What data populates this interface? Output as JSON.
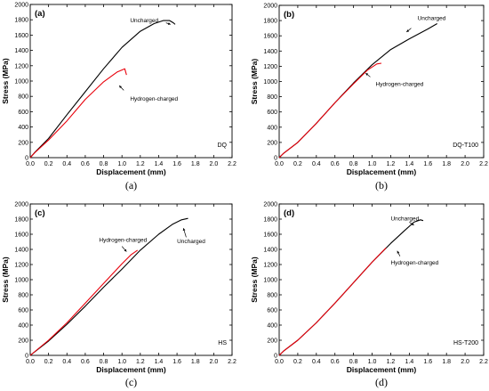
{
  "chart_data": [
    {
      "panel": "(a)",
      "caption": "(a)",
      "type": "line",
      "xlabel": "Displacement (mm)",
      "ylabel": "Stress (MPa)",
      "xlim": [
        0,
        2.2
      ],
      "ylim": [
        0,
        2000
      ],
      "xticks": [
        "0.0",
        "0.2",
        "0.4",
        "0.6",
        "0.8",
        "1.0",
        "1.2",
        "1.4",
        "1.6",
        "1.8",
        "2.0",
        "2.2"
      ],
      "yticks": [
        "0",
        "200",
        "400",
        "600",
        "800",
        "1000",
        "1200",
        "1400",
        "1600",
        "1800",
        "2000"
      ],
      "sample_label": "DQ",
      "series": [
        {
          "name": "Uncharged",
          "color": "#000000",
          "x": [
            0,
            0.05,
            0.2,
            0.4,
            0.6,
            0.8,
            1.0,
            1.2,
            1.35,
            1.45,
            1.52,
            1.56,
            1.58
          ],
          "y": [
            0,
            70,
            250,
            560,
            860,
            1160,
            1440,
            1650,
            1750,
            1790,
            1790,
            1760,
            1740
          ]
        },
        {
          "name": "Hydrogen-charged",
          "color": "#e8000b",
          "x": [
            0,
            0.05,
            0.2,
            0.4,
            0.6,
            0.8,
            0.95,
            1.03,
            1.05
          ],
          "y": [
            0,
            65,
            230,
            480,
            760,
            990,
            1120,
            1160,
            1080
          ]
        }
      ],
      "annotations": [
        {
          "text": "Uncharged",
          "x": 1.05,
          "y": 1720
        },
        {
          "text": "Hydrogen-charged",
          "x": 1.05,
          "y": 790
        }
      ]
    },
    {
      "panel": "(b)",
      "caption": "(b)",
      "type": "line",
      "xlabel": "Displacement (mm)",
      "ylabel": "Stress (MPa)",
      "xlim": [
        0,
        2.2
      ],
      "ylim": [
        0,
        2000
      ],
      "xticks": [
        "0.0",
        "0.2",
        "0.4",
        "0.6",
        "0.8",
        "1.0",
        "1.2",
        "1.4",
        "1.6",
        "1.8",
        "2.0",
        "2.2"
      ],
      "yticks": [
        "0",
        "200",
        "400",
        "600",
        "800",
        "1000",
        "1200",
        "1400",
        "1600",
        "1800",
        "2000"
      ],
      "sample_label": "DQ-T100",
      "series": [
        {
          "name": "Uncharged",
          "color": "#000000",
          "x": [
            0,
            0.05,
            0.2,
            0.4,
            0.6,
            0.8,
            1.0,
            1.2,
            1.4,
            1.6,
            1.7
          ],
          "y": [
            0,
            60,
            200,
            450,
            720,
            980,
            1220,
            1420,
            1560,
            1690,
            1760
          ]
        },
        {
          "name": "Hydrogen-charged",
          "color": "#e8000b",
          "x": [
            0,
            0.05,
            0.2,
            0.4,
            0.6,
            0.8,
            0.95,
            1.05,
            1.1
          ],
          "y": [
            0,
            60,
            200,
            450,
            720,
            970,
            1150,
            1230,
            1240
          ]
        }
      ],
      "annotations": [
        {
          "text": "Uncharged",
          "x": 1.45,
          "y": 1760
        },
        {
          "text": "Hydrogen-charged",
          "x": 1.0,
          "y": 990
        }
      ]
    },
    {
      "panel": "(c)",
      "caption": "(c)",
      "type": "line",
      "xlabel": "Displacement (mm)",
      "ylabel": "Stress (MPa)",
      "xlim": [
        0,
        2.2
      ],
      "ylim": [
        0,
        2000
      ],
      "xticks": [
        "0.0",
        "0.2",
        "0.4",
        "0.6",
        "0.8",
        "1.0",
        "1.2",
        "1.4",
        "1.6",
        "1.8",
        "2.0",
        "2.2"
      ],
      "yticks": [
        "0",
        "200",
        "400",
        "600",
        "800",
        "1000",
        "1200",
        "1400",
        "1600",
        "1800",
        "2000"
      ],
      "sample_label": "HS",
      "series": [
        {
          "name": "Uncharged",
          "color": "#000000",
          "x": [
            0,
            0.2,
            0.4,
            0.6,
            0.8,
            1.0,
            1.2,
            1.4,
            1.55,
            1.65,
            1.72
          ],
          "y": [
            0,
            190,
            410,
            650,
            900,
            1140,
            1390,
            1600,
            1730,
            1790,
            1810
          ]
        },
        {
          "name": "Hydrogen-charged",
          "color": "#e8000b",
          "x": [
            0,
            0.2,
            0.4,
            0.6,
            0.8,
            1.0,
            1.1,
            1.17
          ],
          "y": [
            0,
            200,
            430,
            690,
            950,
            1210,
            1330,
            1390
          ]
        }
      ],
      "annotations": [
        {
          "text": "Hydrogen-charged",
          "x": 0.75,
          "y": 1500
        },
        {
          "text": "Uncharged",
          "x": 1.6,
          "y": 1480
        }
      ]
    },
    {
      "panel": "(d)",
      "caption": "(d)",
      "type": "line",
      "xlabel": "Displacement (mm)",
      "ylabel": "Stress (MPa)",
      "xlim": [
        0,
        2.2
      ],
      "ylim": [
        0,
        2000
      ],
      "xticks": [
        "0.0",
        "0.2",
        "0.4",
        "0.6",
        "0.8",
        "1.0",
        "1.2",
        "1.4",
        "1.6",
        "1.8",
        "2.0",
        "2.2"
      ],
      "yticks": [
        "0",
        "200",
        "400",
        "600",
        "800",
        "1000",
        "1200",
        "1400",
        "1600",
        "1800",
        "2000"
      ],
      "sample_label": "HS-T200",
      "series": [
        {
          "name": "Uncharged",
          "color": "#000000",
          "x": [
            0,
            0.05,
            0.2,
            0.4,
            0.6,
            0.8,
            1.0,
            1.2,
            1.35,
            1.45,
            1.52,
            1.55
          ],
          "y": [
            0,
            60,
            200,
            430,
            690,
            960,
            1230,
            1480,
            1650,
            1760,
            1790,
            1780
          ]
        },
        {
          "name": "Hydrogen-charged",
          "color": "#e8000b",
          "x": [
            0,
            0.05,
            0.2,
            0.4,
            0.6,
            0.8,
            1.0,
            1.15
          ],
          "y": [
            0,
            60,
            200,
            430,
            690,
            960,
            1230,
            1420
          ]
        }
      ],
      "annotations": [
        {
          "text": "Uncharged",
          "x": 1.2,
          "y": 1780
        },
        {
          "text": "Hydrogen-charged",
          "x": 1.2,
          "y": 1200
        }
      ]
    }
  ]
}
